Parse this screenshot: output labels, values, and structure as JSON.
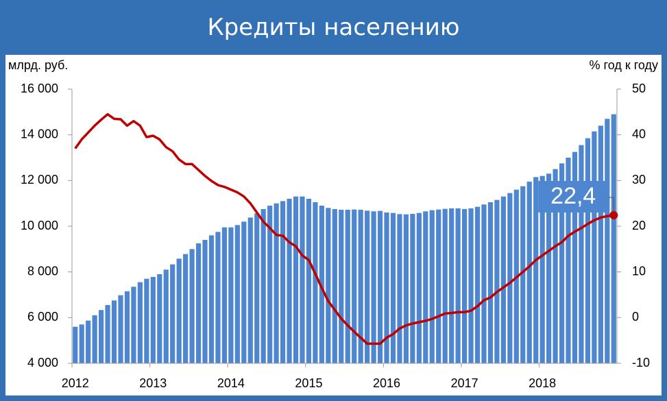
{
  "chart_data": {
    "type": "bar",
    "title": "Кредиты населению",
    "y_label": "млрд. руб.",
    "y2_label": "% год к году",
    "categories": [
      "2012",
      null,
      null,
      null,
      null,
      null,
      null,
      null,
      null,
      null,
      null,
      null,
      "2013",
      null,
      null,
      null,
      null,
      null,
      null,
      null,
      null,
      null,
      null,
      null,
      "2014",
      null,
      null,
      null,
      null,
      null,
      null,
      null,
      null,
      null,
      null,
      null,
      "2015",
      null,
      null,
      null,
      null,
      null,
      null,
      null,
      null,
      null,
      null,
      null,
      "2016",
      null,
      null,
      null,
      null,
      null,
      null,
      null,
      null,
      null,
      null,
      null,
      "2017",
      null,
      null,
      null,
      null,
      null,
      null,
      null,
      null,
      null,
      null,
      null,
      "2018",
      null,
      null,
      null,
      null,
      null,
      null,
      null,
      null,
      null,
      null,
      null
    ],
    "series": [
      {
        "type": "bar",
        "color": "#4f86d0",
        "values": [
          5600,
          5700,
          5870,
          6100,
          6330,
          6550,
          6750,
          6980,
          7150,
          7350,
          7550,
          7700,
          7780,
          7900,
          8100,
          8330,
          8580,
          8780,
          9000,
          9250,
          9400,
          9600,
          9750,
          9950,
          9950,
          10050,
          10200,
          10380,
          10560,
          10750,
          10900,
          11000,
          11100,
          11200,
          11300,
          11300,
          11200,
          11050,
          10900,
          10800,
          10750,
          10720,
          10720,
          10730,
          10720,
          10680,
          10650,
          10670,
          10600,
          10580,
          10530,
          10520,
          10540,
          10580,
          10650,
          10700,
          10730,
          10760,
          10780,
          10780,
          10750,
          10780,
          10850,
          10950,
          11050,
          11150,
          11300,
          11450,
          11600,
          11750,
          11950,
          12150,
          12200,
          12300,
          12500,
          12750,
          13000,
          13250,
          13550,
          13850,
          14150,
          14400,
          14700,
          14900
        ]
      },
      {
        "type": "line",
        "axis": "y2",
        "color": "#c00000",
        "values": [
          37,
          39,
          40.5,
          42,
          43.3,
          44.5,
          43.5,
          43.4,
          42,
          43,
          42,
          39.5,
          39.8,
          39,
          37.3,
          36.4,
          34.6,
          33.6,
          33.6,
          32.3,
          31,
          29.9,
          29,
          28.6,
          28,
          27.4,
          26.5,
          25,
          23,
          21,
          19.6,
          18.1,
          17.9,
          16.5,
          15.6,
          13.6,
          12.6,
          9.6,
          6.5,
          3.6,
          1.7,
          -0.2,
          -1.7,
          -3.1,
          -4.4,
          -5.7,
          -5.7,
          -5.7,
          -4.4,
          -3.6,
          -2.4,
          -1.7,
          -1.3,
          -1,
          -0.7,
          -0.3,
          0.3,
          0.9,
          1,
          1.2,
          1.2,
          1.5,
          2.5,
          3.8,
          4.4,
          5.6,
          6.6,
          7.6,
          8.8,
          10,
          11.2,
          12.6,
          13.6,
          14.6,
          15.6,
          16.5,
          17.9,
          18.8,
          19.6,
          20.5,
          21.3,
          21.9,
          22.2,
          22.4
        ],
        "value_labels": [
          null,
          null,
          null,
          null,
          null,
          null,
          null,
          null,
          null,
          null,
          null,
          null,
          null,
          null,
          null,
          null,
          null,
          null,
          null,
          null,
          null,
          null,
          null,
          null,
          null,
          null,
          null,
          null,
          null,
          null,
          null,
          null,
          null,
          null,
          null,
          null,
          null,
          null,
          null,
          null,
          null,
          null,
          null,
          null,
          null,
          null,
          null,
          null,
          null,
          null,
          null,
          null,
          null,
          null,
          null,
          null,
          null,
          null,
          null,
          null,
          null,
          null,
          null,
          null,
          null,
          null,
          null,
          null,
          null,
          null,
          null,
          null,
          null,
          null,
          null,
          null,
          null,
          null,
          null,
          null,
          null,
          null,
          null,
          "22,4"
        ]
      }
    ],
    "ylim": [
      4000,
      16000
    ],
    "yticks": [
      {
        "value": 4000,
        "label": "4 000"
      },
      {
        "value": 6000,
        "label": "6 000"
      },
      {
        "value": 8000,
        "label": "8 000"
      },
      {
        "value": 10000,
        "label": "10 000"
      },
      {
        "value": 12000,
        "label": "12 000"
      },
      {
        "value": 14000,
        "label": "14 000"
      },
      {
        "value": 16000,
        "label": "16 000"
      }
    ],
    "y2lim": [
      -10,
      50
    ],
    "y2ticks": [
      -10,
      0,
      10,
      20,
      30,
      40,
      50
    ]
  }
}
